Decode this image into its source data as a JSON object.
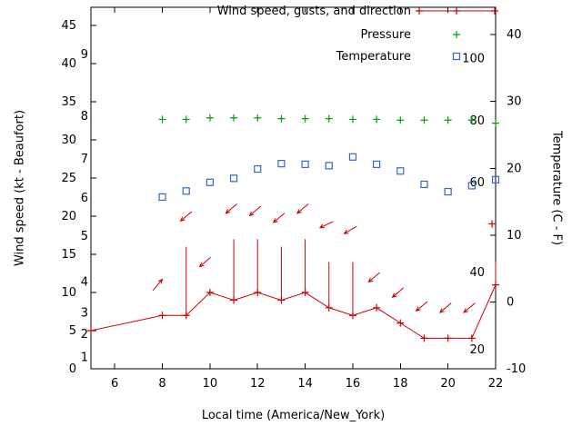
{
  "chart_data": {
    "type": "line",
    "title": "",
    "xlabel": "Local time (America/New_York)",
    "ylabel_left": "Wind speed (kt - Beaufort)",
    "ylabel_right": "Temperature (C - F)",
    "grid": false,
    "legend_position": "top-center",
    "x_range": [
      5,
      22
    ],
    "x_ticks": [
      6,
      8,
      10,
      12,
      14,
      16,
      18,
      20,
      22
    ],
    "yleft_range": [
      0,
      47.4
    ],
    "yleft_ticks": [
      0,
      5,
      10,
      15,
      20,
      25,
      30,
      35,
      40,
      45
    ],
    "yright_range": [
      -10,
      44.1
    ],
    "yright_ticks": [
      -10,
      0,
      10,
      20,
      30,
      40
    ],
    "beaufort_labels": [
      {
        "label": "1",
        "kt": 1.5
      },
      {
        "label": "2",
        "kt": 4.5
      },
      {
        "label": "3",
        "kt": 7.3
      },
      {
        "label": "4",
        "kt": 11.4
      },
      {
        "label": "5",
        "kt": 17.4
      },
      {
        "label": "6",
        "kt": 22.4
      },
      {
        "label": "7",
        "kt": 27.5
      },
      {
        "label": "8",
        "kt": 33.1
      },
      {
        "label": "9",
        "kt": 41.2
      }
    ],
    "inner_right_labels": [
      {
        "label": "100",
        "kt": 40.7
      },
      {
        "label": "80",
        "kt": 32.5
      },
      {
        "label": "60",
        "kt": 24.4
      },
      {
        "label": "40",
        "kt": 12.6
      },
      {
        "label": "20",
        "kt": 2.5
      }
    ],
    "legend": [
      {
        "label": "Wind speed, gusts, and direction",
        "style": "line-plus",
        "color": "#cc0000"
      },
      {
        "label": "Pressure",
        "style": "plus",
        "color": "#00a000"
      },
      {
        "label": "Temperature",
        "style": "square",
        "color": "#3366cc"
      }
    ],
    "colors": {
      "wind": "#cc0000",
      "pressure": "#00a000",
      "temperature": "#3366cc",
      "axis": "#000000",
      "background": "#ffffff"
    },
    "series": {
      "wind_speed": {
        "x": [
          5,
          8,
          9,
          10,
          11,
          12,
          13,
          14,
          15,
          16,
          17,
          18,
          19,
          20,
          21,
          22
        ],
        "kt": [
          5,
          7,
          7,
          10,
          9,
          10,
          9,
          10,
          8,
          7,
          8,
          6,
          4,
          4,
          4,
          11
        ]
      },
      "wind_gusts": [
        {
          "x": 9,
          "from_kt": 7,
          "to_kt": 16
        },
        {
          "x": 11,
          "from_kt": 9,
          "to_kt": 17
        },
        {
          "x": 12,
          "from_kt": 10,
          "to_kt": 17
        },
        {
          "x": 13,
          "from_kt": 9,
          "to_kt": 16
        },
        {
          "x": 14,
          "from_kt": 10,
          "to_kt": 17
        },
        {
          "x": 15,
          "from_kt": 8,
          "to_kt": 14
        },
        {
          "x": 16,
          "from_kt": 7,
          "to_kt": 14
        },
        {
          "x": 22,
          "from_kt": 11,
          "to_kt": 14
        }
      ],
      "gust_marker": {
        "x": 21.85,
        "kt": 19
      },
      "wind_arrows": [
        {
          "x": 7.8,
          "kt": 11,
          "angle_deg": -50
        },
        {
          "x": 9.0,
          "kt": 20,
          "angle_deg": 140
        },
        {
          "x": 9.8,
          "kt": 14,
          "angle_deg": 140
        },
        {
          "x": 10.9,
          "kt": 21,
          "angle_deg": 140
        },
        {
          "x": 11.9,
          "kt": 20.7,
          "angle_deg": 140
        },
        {
          "x": 12.9,
          "kt": 19.8,
          "angle_deg": 140
        },
        {
          "x": 13.9,
          "kt": 21,
          "angle_deg": 140
        },
        {
          "x": 14.9,
          "kt": 18.9,
          "angle_deg": 155
        },
        {
          "x": 15.9,
          "kt": 18.2,
          "angle_deg": 150
        },
        {
          "x": 16.9,
          "kt": 12,
          "angle_deg": 140
        },
        {
          "x": 17.9,
          "kt": 10,
          "angle_deg": 140
        },
        {
          "x": 18.9,
          "kt": 8.2,
          "angle_deg": 140
        },
        {
          "x": 19.9,
          "kt": 8,
          "angle_deg": 140
        },
        {
          "x": 20.9,
          "kt": 8,
          "angle_deg": 140
        }
      ],
      "pressure": {
        "x": [
          8,
          9,
          10,
          11,
          12,
          13,
          14,
          15,
          16,
          17,
          18,
          19,
          20,
          21,
          22
        ],
        "kt_scale": [
          32.7,
          32.7,
          32.9,
          32.9,
          32.9,
          32.8,
          32.8,
          32.8,
          32.7,
          32.7,
          32.6,
          32.6,
          32.6,
          32.6,
          32.2
        ]
      },
      "temperature": {
        "x": [
          8,
          9,
          10,
          11,
          12,
          13,
          14,
          15,
          16,
          17,
          18,
          19,
          20,
          21,
          22
        ],
        "deg": [
          15.7,
          16.6,
          17.9,
          18.5,
          19.9,
          20.7,
          20.6,
          20.4,
          21.7,
          20.6,
          19.6,
          17.6,
          16.5,
          17.4,
          18.3
        ]
      }
    }
  }
}
